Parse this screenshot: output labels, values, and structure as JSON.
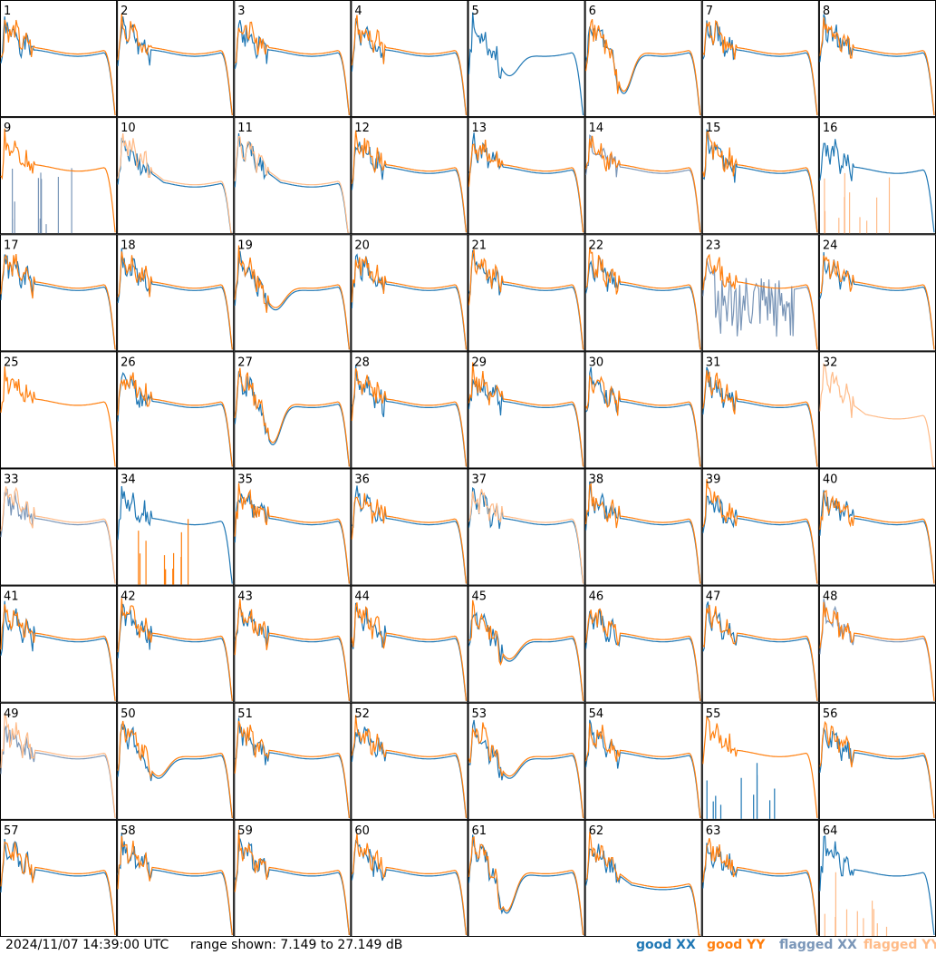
{
  "chart_data": {
    "type": "line",
    "description_units": "dB",
    "ylim": [
      7.149,
      27.149
    ],
    "grid": "8x8",
    "series_styles": [
      {
        "key": "good_xx",
        "color": "#1f77b4"
      },
      {
        "key": "good_yy",
        "color": "#ff7f0e"
      },
      {
        "key": "flagged_xx",
        "color": "#7a96b8"
      },
      {
        "key": "flagged_yy",
        "color": "#ffbb88"
      }
    ],
    "tiles": [
      {
        "n": "1",
        "xx": "good",
        "yy": "good",
        "shape": "std"
      },
      {
        "n": "2",
        "xx": "good",
        "yy": "good",
        "shape": "std"
      },
      {
        "n": "3",
        "xx": "good",
        "yy": "good",
        "shape": "std"
      },
      {
        "n": "4",
        "xx": "good",
        "yy": "good",
        "shape": "std"
      },
      {
        "n": "5",
        "xx": "good",
        "yy": "none",
        "shape": "dip"
      },
      {
        "n": "6",
        "xx": "good",
        "yy": "good",
        "shape": "deepdip"
      },
      {
        "n": "7",
        "xx": "good",
        "yy": "good",
        "shape": "std"
      },
      {
        "n": "8",
        "xx": "good",
        "yy": "good",
        "shape": "std"
      },
      {
        "n": "9",
        "xx": "flagged",
        "yy": "good",
        "shape": "std",
        "xxshape": "spikes"
      },
      {
        "n": "10",
        "xx": "good",
        "yy": "flagged",
        "shape": "low"
      },
      {
        "n": "11",
        "xx": "good",
        "yy": "flagged",
        "shape": "low"
      },
      {
        "n": "12",
        "xx": "good",
        "yy": "good",
        "shape": "std"
      },
      {
        "n": "13",
        "xx": "good",
        "yy": "good",
        "shape": "std"
      },
      {
        "n": "14",
        "xx": "flagged",
        "yy": "good",
        "shape": "std"
      },
      {
        "n": "15",
        "xx": "good",
        "yy": "good",
        "shape": "std"
      },
      {
        "n": "16",
        "xx": "good",
        "yy": "flagged",
        "shape": "std",
        "yyshape": "spikes"
      },
      {
        "n": "17",
        "xx": "good",
        "yy": "good",
        "shape": "std"
      },
      {
        "n": "18",
        "xx": "good",
        "yy": "good",
        "shape": "std"
      },
      {
        "n": "19",
        "xx": "good",
        "yy": "good",
        "shape": "dip"
      },
      {
        "n": "20",
        "xx": "good",
        "yy": "good",
        "shape": "std"
      },
      {
        "n": "21",
        "xx": "good",
        "yy": "good",
        "shape": "std"
      },
      {
        "n": "22",
        "xx": "good",
        "yy": "good",
        "shape": "std"
      },
      {
        "n": "23",
        "xx": "flagged",
        "yy": "good",
        "shape": "std",
        "xxshape": "noise"
      },
      {
        "n": "24",
        "xx": "good",
        "yy": "good",
        "shape": "std"
      },
      {
        "n": "25",
        "xx": "none",
        "yy": "good",
        "shape": "std"
      },
      {
        "n": "26",
        "xx": "good",
        "yy": "good",
        "shape": "std"
      },
      {
        "n": "27",
        "xx": "good",
        "yy": "good",
        "shape": "deepdip"
      },
      {
        "n": "28",
        "xx": "good",
        "yy": "good",
        "shape": "std"
      },
      {
        "n": "29",
        "xx": "good",
        "yy": "good",
        "shape": "std"
      },
      {
        "n": "30",
        "xx": "good",
        "yy": "good",
        "shape": "std"
      },
      {
        "n": "31",
        "xx": "good",
        "yy": "good",
        "shape": "std"
      },
      {
        "n": "32",
        "xx": "none",
        "yy": "flagged",
        "shape": "low"
      },
      {
        "n": "33",
        "xx": "flagged",
        "yy": "flagged",
        "shape": "std"
      },
      {
        "n": "34",
        "xx": "good",
        "yy": "good",
        "shape": "std",
        "yyshape": "spikes"
      },
      {
        "n": "35",
        "xx": "good",
        "yy": "good",
        "shape": "std"
      },
      {
        "n": "36",
        "xx": "good",
        "yy": "good",
        "shape": "std"
      },
      {
        "n": "37",
        "xx": "good",
        "yy": "flagged",
        "shape": "std"
      },
      {
        "n": "38",
        "xx": "good",
        "yy": "good",
        "shape": "std"
      },
      {
        "n": "39",
        "xx": "good",
        "yy": "good",
        "shape": "std"
      },
      {
        "n": "40",
        "xx": "good",
        "yy": "good",
        "shape": "std"
      },
      {
        "n": "41",
        "xx": "good",
        "yy": "good",
        "shape": "std"
      },
      {
        "n": "42",
        "xx": "good",
        "yy": "good",
        "shape": "std"
      },
      {
        "n": "43",
        "xx": "good",
        "yy": "good",
        "shape": "std"
      },
      {
        "n": "44",
        "xx": "good",
        "yy": "good",
        "shape": "std"
      },
      {
        "n": "45",
        "xx": "good",
        "yy": "good",
        "shape": "dip"
      },
      {
        "n": "46",
        "xx": "good",
        "yy": "good",
        "shape": "std"
      },
      {
        "n": "47",
        "xx": "good",
        "yy": "good",
        "shape": "std"
      },
      {
        "n": "48",
        "xx": "flagged",
        "yy": "good",
        "shape": "std"
      },
      {
        "n": "49",
        "xx": "flagged",
        "yy": "flagged",
        "shape": "std"
      },
      {
        "n": "50",
        "xx": "good",
        "yy": "good",
        "shape": "dip"
      },
      {
        "n": "51",
        "xx": "good",
        "yy": "good",
        "shape": "std"
      },
      {
        "n": "52",
        "xx": "good",
        "yy": "good",
        "shape": "std"
      },
      {
        "n": "53",
        "xx": "good",
        "yy": "good",
        "shape": "dip"
      },
      {
        "n": "54",
        "xx": "good",
        "yy": "good",
        "shape": "std"
      },
      {
        "n": "55",
        "xx": "good",
        "yy": "good",
        "shape": "std",
        "xxshape": "spikes"
      },
      {
        "n": "56",
        "xx": "good",
        "yy": "good",
        "shape": "std"
      },
      {
        "n": "57",
        "xx": "good",
        "yy": "good",
        "shape": "std"
      },
      {
        "n": "58",
        "xx": "good",
        "yy": "good",
        "shape": "std"
      },
      {
        "n": "59",
        "xx": "good",
        "yy": "good",
        "shape": "std"
      },
      {
        "n": "60",
        "xx": "good",
        "yy": "good",
        "shape": "std"
      },
      {
        "n": "61",
        "xx": "good",
        "yy": "good",
        "shape": "deepdip"
      },
      {
        "n": "62",
        "xx": "good",
        "yy": "good",
        "shape": "low"
      },
      {
        "n": "63",
        "xx": "good",
        "yy": "good",
        "shape": "std"
      },
      {
        "n": "64",
        "xx": "good",
        "yy": "flagged",
        "shape": "std",
        "yyshape": "spikes"
      }
    ]
  },
  "footer": {
    "timestamp": "2024/11/07 14:39:00 UTC",
    "range_text": "range shown: 7.149 to 27.149 dB",
    "legend": {
      "good_xx": "good XX",
      "good_yy": "good YY",
      "flagged_xx": "flagged XX",
      "flagged_yy": "flagged YY"
    }
  }
}
